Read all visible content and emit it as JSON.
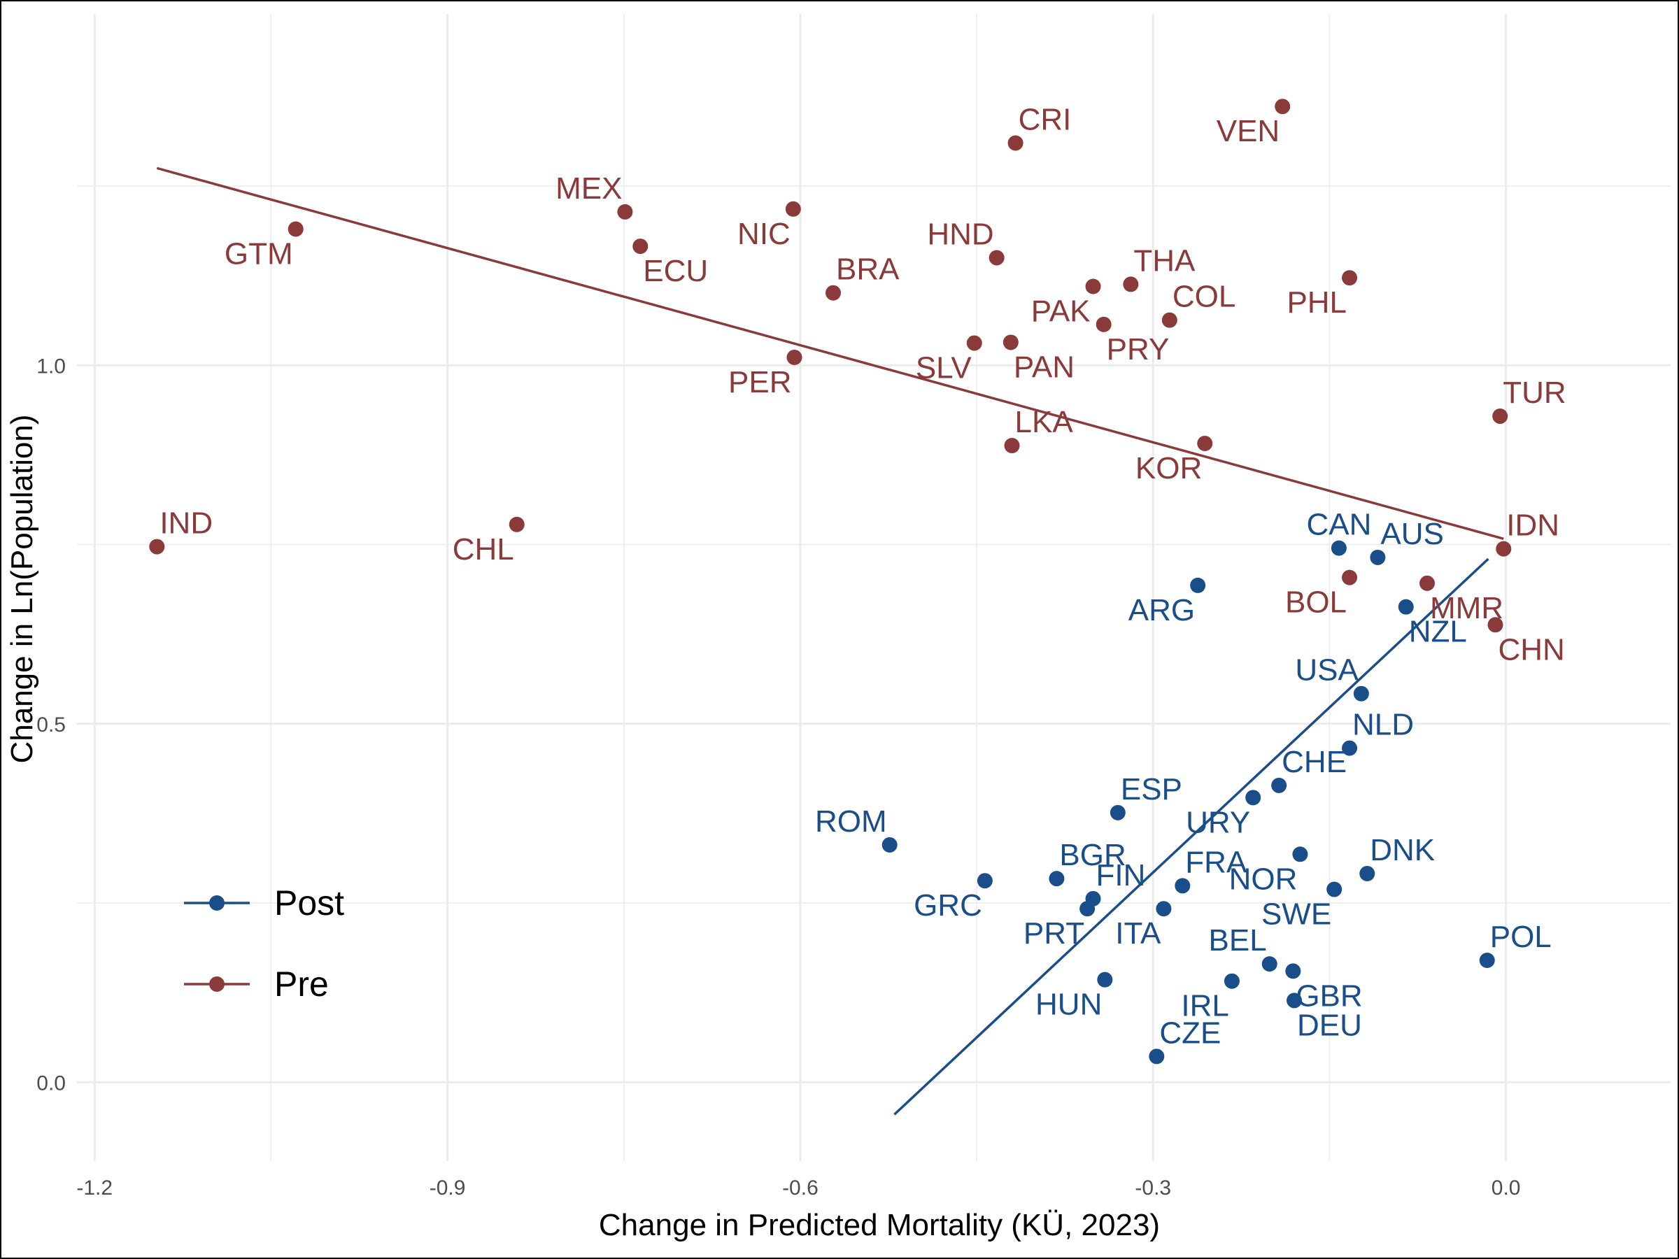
{
  "chart_data": {
    "type": "scatter",
    "title": "",
    "xlabel": "Change in Predicted Mortality (KÜ, 2023)",
    "ylabel": "Change in Ln(Population)",
    "xlim": [
      -1.215,
      0.14
    ],
    "ylim": [
      -0.11,
      1.49
    ],
    "x_ticks": [
      -1.2,
      -0.9,
      -0.6,
      -0.3,
      0.0
    ],
    "x_tick_labels": [
      "-1.2",
      "-0.9",
      "-0.6",
      "-0.3",
      "0.0"
    ],
    "y_ticks": [
      0.0,
      0.5,
      1.0
    ],
    "y_tick_labels": [
      "0.0",
      "0.5",
      "1.0"
    ],
    "grid": true,
    "legend_position": "left-bottom",
    "series": [
      {
        "name": "Post",
        "color": "#1a4e8a",
        "fit_line": {
          "x": [
            -0.52,
            -0.015
          ],
          "y": [
            -0.045,
            0.73
          ]
        },
        "points": [
          {
            "label": "CAN",
            "x": -0.142,
            "y": 0.745
          },
          {
            "label": "AUS",
            "x": -0.109,
            "y": 0.732
          },
          {
            "label": "ARG",
            "x": -0.262,
            "y": 0.693
          },
          {
            "label": "NZL",
            "x": -0.085,
            "y": 0.663
          },
          {
            "label": "USA",
            "x": -0.123,
            "y": 0.542
          },
          {
            "label": "NLD",
            "x": -0.133,
            "y": 0.466
          },
          {
            "label": "CHE",
            "x": -0.193,
            "y": 0.414
          },
          {
            "label": "URY",
            "x": -0.215,
            "y": 0.397
          },
          {
            "label": "ESP",
            "x": -0.33,
            "y": 0.376
          },
          {
            "label": "ROM",
            "x": -0.524,
            "y": 0.331
          },
          {
            "label": "NOR",
            "x": -0.175,
            "y": 0.318
          },
          {
            "label": "DNK",
            "x": -0.118,
            "y": 0.291
          },
          {
            "label": "BGR",
            "x": -0.382,
            "y": 0.284
          },
          {
            "label": "GRC",
            "x": -0.443,
            "y": 0.281
          },
          {
            "label": "FRA",
            "x": -0.275,
            "y": 0.274
          },
          {
            "label": "SWE",
            "x": -0.146,
            "y": 0.269
          },
          {
            "label": "FIN",
            "x": -0.351,
            "y": 0.256
          },
          {
            "label": "PRT",
            "x": -0.356,
            "y": 0.242
          },
          {
            "label": "ITA",
            "x": -0.291,
            "y": 0.242
          },
          {
            "label": "POL",
            "x": -0.016,
            "y": 0.17
          },
          {
            "label": "BEL",
            "x": -0.201,
            "y": 0.165
          },
          {
            "label": "GBR",
            "x": -0.181,
            "y": 0.155
          },
          {
            "label": "IRL",
            "x": -0.233,
            "y": 0.141
          },
          {
            "label": "HUN",
            "x": -0.341,
            "y": 0.143
          },
          {
            "label": "DEU",
            "x": -0.18,
            "y": 0.114
          },
          {
            "label": "CZE",
            "x": -0.297,
            "y": 0.036
          }
        ]
      },
      {
        "name": "Pre",
        "color": "#8b3a3a",
        "fit_line": {
          "x": [
            -1.147,
            -0.002
          ],
          "y": [
            1.275,
            0.758
          ]
        },
        "points": [
          {
            "label": "VEN",
            "x": -0.19,
            "y": 1.361
          },
          {
            "label": "CRI",
            "x": -0.417,
            "y": 1.31
          },
          {
            "label": "MEX",
            "x": -0.749,
            "y": 1.214
          },
          {
            "label": "NIC",
            "x": -0.606,
            "y": 1.218
          },
          {
            "label": "GTM",
            "x": -1.029,
            "y": 1.19
          },
          {
            "label": "ECU",
            "x": -0.736,
            "y": 1.166
          },
          {
            "label": "HND",
            "x": -0.433,
            "y": 1.15
          },
          {
            "label": "PHL",
            "x": -0.133,
            "y": 1.122
          },
          {
            "label": "THA",
            "x": -0.319,
            "y": 1.113
          },
          {
            "label": "PAK",
            "x": -0.351,
            "y": 1.11
          },
          {
            "label": "BRA",
            "x": -0.572,
            "y": 1.101
          },
          {
            "label": "COL",
            "x": -0.286,
            "y": 1.063
          },
          {
            "label": "PRY",
            "x": -0.342,
            "y": 1.057
          },
          {
            "label": "PAN",
            "x": -0.421,
            "y": 1.032
          },
          {
            "label": "SLV",
            "x": -0.452,
            "y": 1.031
          },
          {
            "label": "PER",
            "x": -0.605,
            "y": 1.011
          },
          {
            "label": "TUR",
            "x": -0.005,
            "y": 0.929
          },
          {
            "label": "KOR",
            "x": -0.256,
            "y": 0.891
          },
          {
            "label": "LKA",
            "x": -0.42,
            "y": 0.888
          },
          {
            "label": "CHL",
            "x": -0.841,
            "y": 0.778
          },
          {
            "label": "IND",
            "x": -1.147,
            "y": 0.747
          },
          {
            "label": "IDN",
            "x": -0.002,
            "y": 0.744
          },
          {
            "label": "BOL",
            "x": -0.133,
            "y": 0.704
          },
          {
            "label": "MMR",
            "x": -0.067,
            "y": 0.696
          },
          {
            "label": "CHN",
            "x": -0.009,
            "y": 0.638
          }
        ]
      }
    ]
  }
}
